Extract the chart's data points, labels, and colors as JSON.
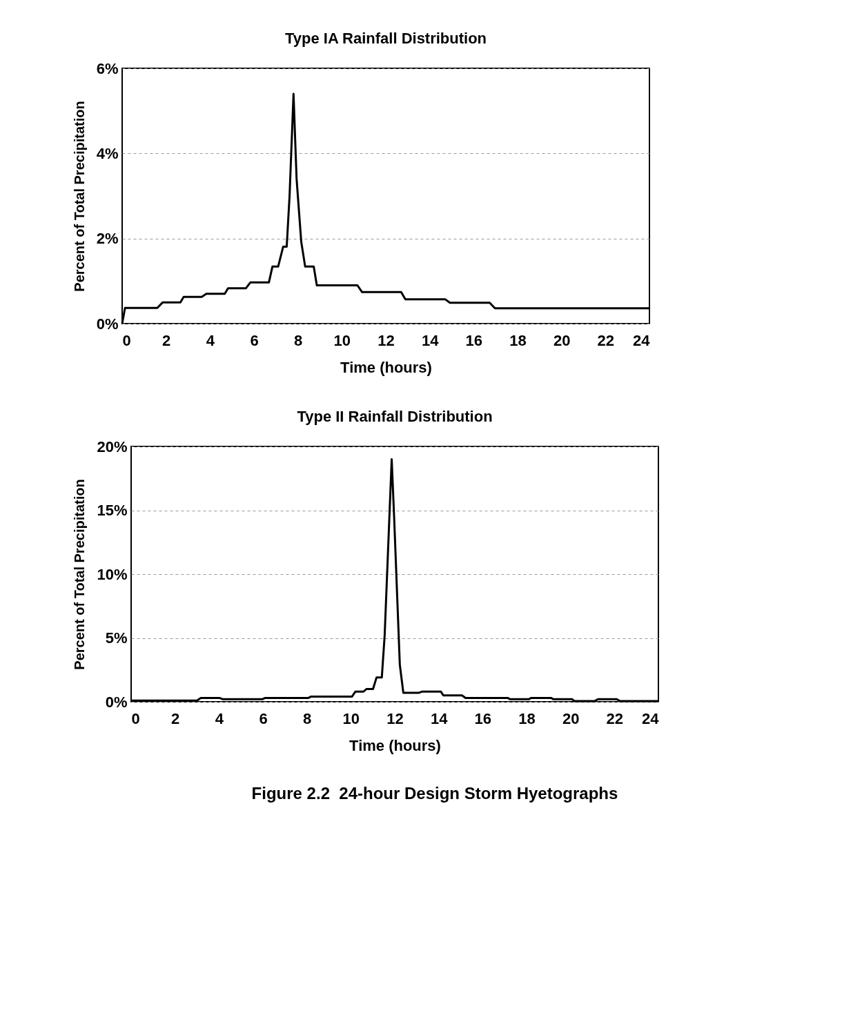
{
  "chart_data": [
    {
      "type": "line",
      "title": "Type IA Rainfall Distribution",
      "xlabel": "Time (hours)",
      "ylabel": "Percent of Total Precipitation",
      "xlim": [
        0,
        24
      ],
      "xticks": [
        0,
        2,
        4,
        6,
        8,
        10,
        12,
        14,
        16,
        18,
        20,
        22,
        24
      ],
      "ylim": [
        0,
        6
      ],
      "yticks": [
        {
          "value": 0,
          "label": "0%"
        },
        {
          "value": 2,
          "label": "2%"
        },
        {
          "value": 4,
          "label": "4%"
        },
        {
          "value": 6,
          "label": "6%"
        }
      ],
      "grid": "y",
      "marker": "none",
      "line_style": "solid",
      "series": [
        {
          "color": "#000000",
          "x": [
            0,
            0.13,
            1.6,
            1.84,
            2.65,
            2.8,
            3.62,
            3.83,
            4.67,
            4.82,
            5.63,
            5.84,
            6.68,
            6.84,
            7.1,
            7.33,
            7.49,
            7.62,
            7.8,
            7.94,
            8.15,
            8.33,
            8.72,
            8.86,
            10.71,
            10.92,
            12.7,
            12.89,
            14.71,
            14.92,
            16.73,
            16.97,
            24
          ],
          "values": [
            0,
            0.37,
            0.37,
            0.5,
            0.5,
            0.63,
            0.63,
            0.7,
            0.7,
            0.83,
            0.83,
            0.97,
            0.97,
            1.34,
            1.34,
            1.81,
            1.81,
            3.0,
            5.4,
            3.4,
            1.93,
            1.34,
            1.34,
            0.9,
            0.9,
            0.74,
            0.74,
            0.57,
            0.57,
            0.49,
            0.49,
            0.36,
            0.36
          ]
        }
      ]
    },
    {
      "type": "line",
      "title": "Type II Rainfall Distribution",
      "xlabel": "Time (hours)",
      "ylabel": "Percent of Total Precipitation",
      "xlim": [
        0,
        24
      ],
      "xticks": [
        0,
        2,
        4,
        6,
        8,
        10,
        12,
        14,
        16,
        18,
        20,
        22,
        24
      ],
      "ylim": [
        0,
        20
      ],
      "yticks": [
        {
          "value": 0,
          "label": "0%"
        },
        {
          "value": 5,
          "label": "5%"
        },
        {
          "value": 10,
          "label": "10%"
        },
        {
          "value": 15,
          "label": "15%"
        },
        {
          "value": 20,
          "label": "20%"
        }
      ],
      "grid": "y",
      "marker": "none",
      "line_style": "solid",
      "annotations": [
        "Figure 2.2  24-hour Design Storm Hyetographs"
      ],
      "series": [
        {
          "color": "#000000",
          "x": [
            0,
            3.0,
            3.17,
            4.02,
            4.18,
            5.97,
            6.1,
            8.07,
            8.18,
            10.05,
            10.21,
            10.58,
            10.71,
            11.01,
            11.17,
            11.41,
            11.54,
            11.86,
            11.97,
            12.23,
            12.39,
            13.09,
            13.25,
            14.1,
            14.21,
            15.06,
            15.22,
            17.14,
            17.25,
            18.1,
            18.21,
            19.11,
            19.22,
            20.07,
            20.18,
            21.09,
            21.25,
            22.1,
            22.26,
            24
          ],
          "values": [
            0.1,
            0.1,
            0.3,
            0.3,
            0.2,
            0.2,
            0.3,
            0.3,
            0.4,
            0.4,
            0.8,
            0.8,
            1.0,
            1.0,
            1.9,
            1.9,
            5.2,
            19,
            14.5,
            2.9,
            0.7,
            0.7,
            0.8,
            0.8,
            0.5,
            0.5,
            0.3,
            0.3,
            0.2,
            0.2,
            0.3,
            0.3,
            0.2,
            0.2,
            0.05,
            0.05,
            0.2,
            0.2,
            0.05,
            0.05
          ]
        }
      ]
    }
  ]
}
